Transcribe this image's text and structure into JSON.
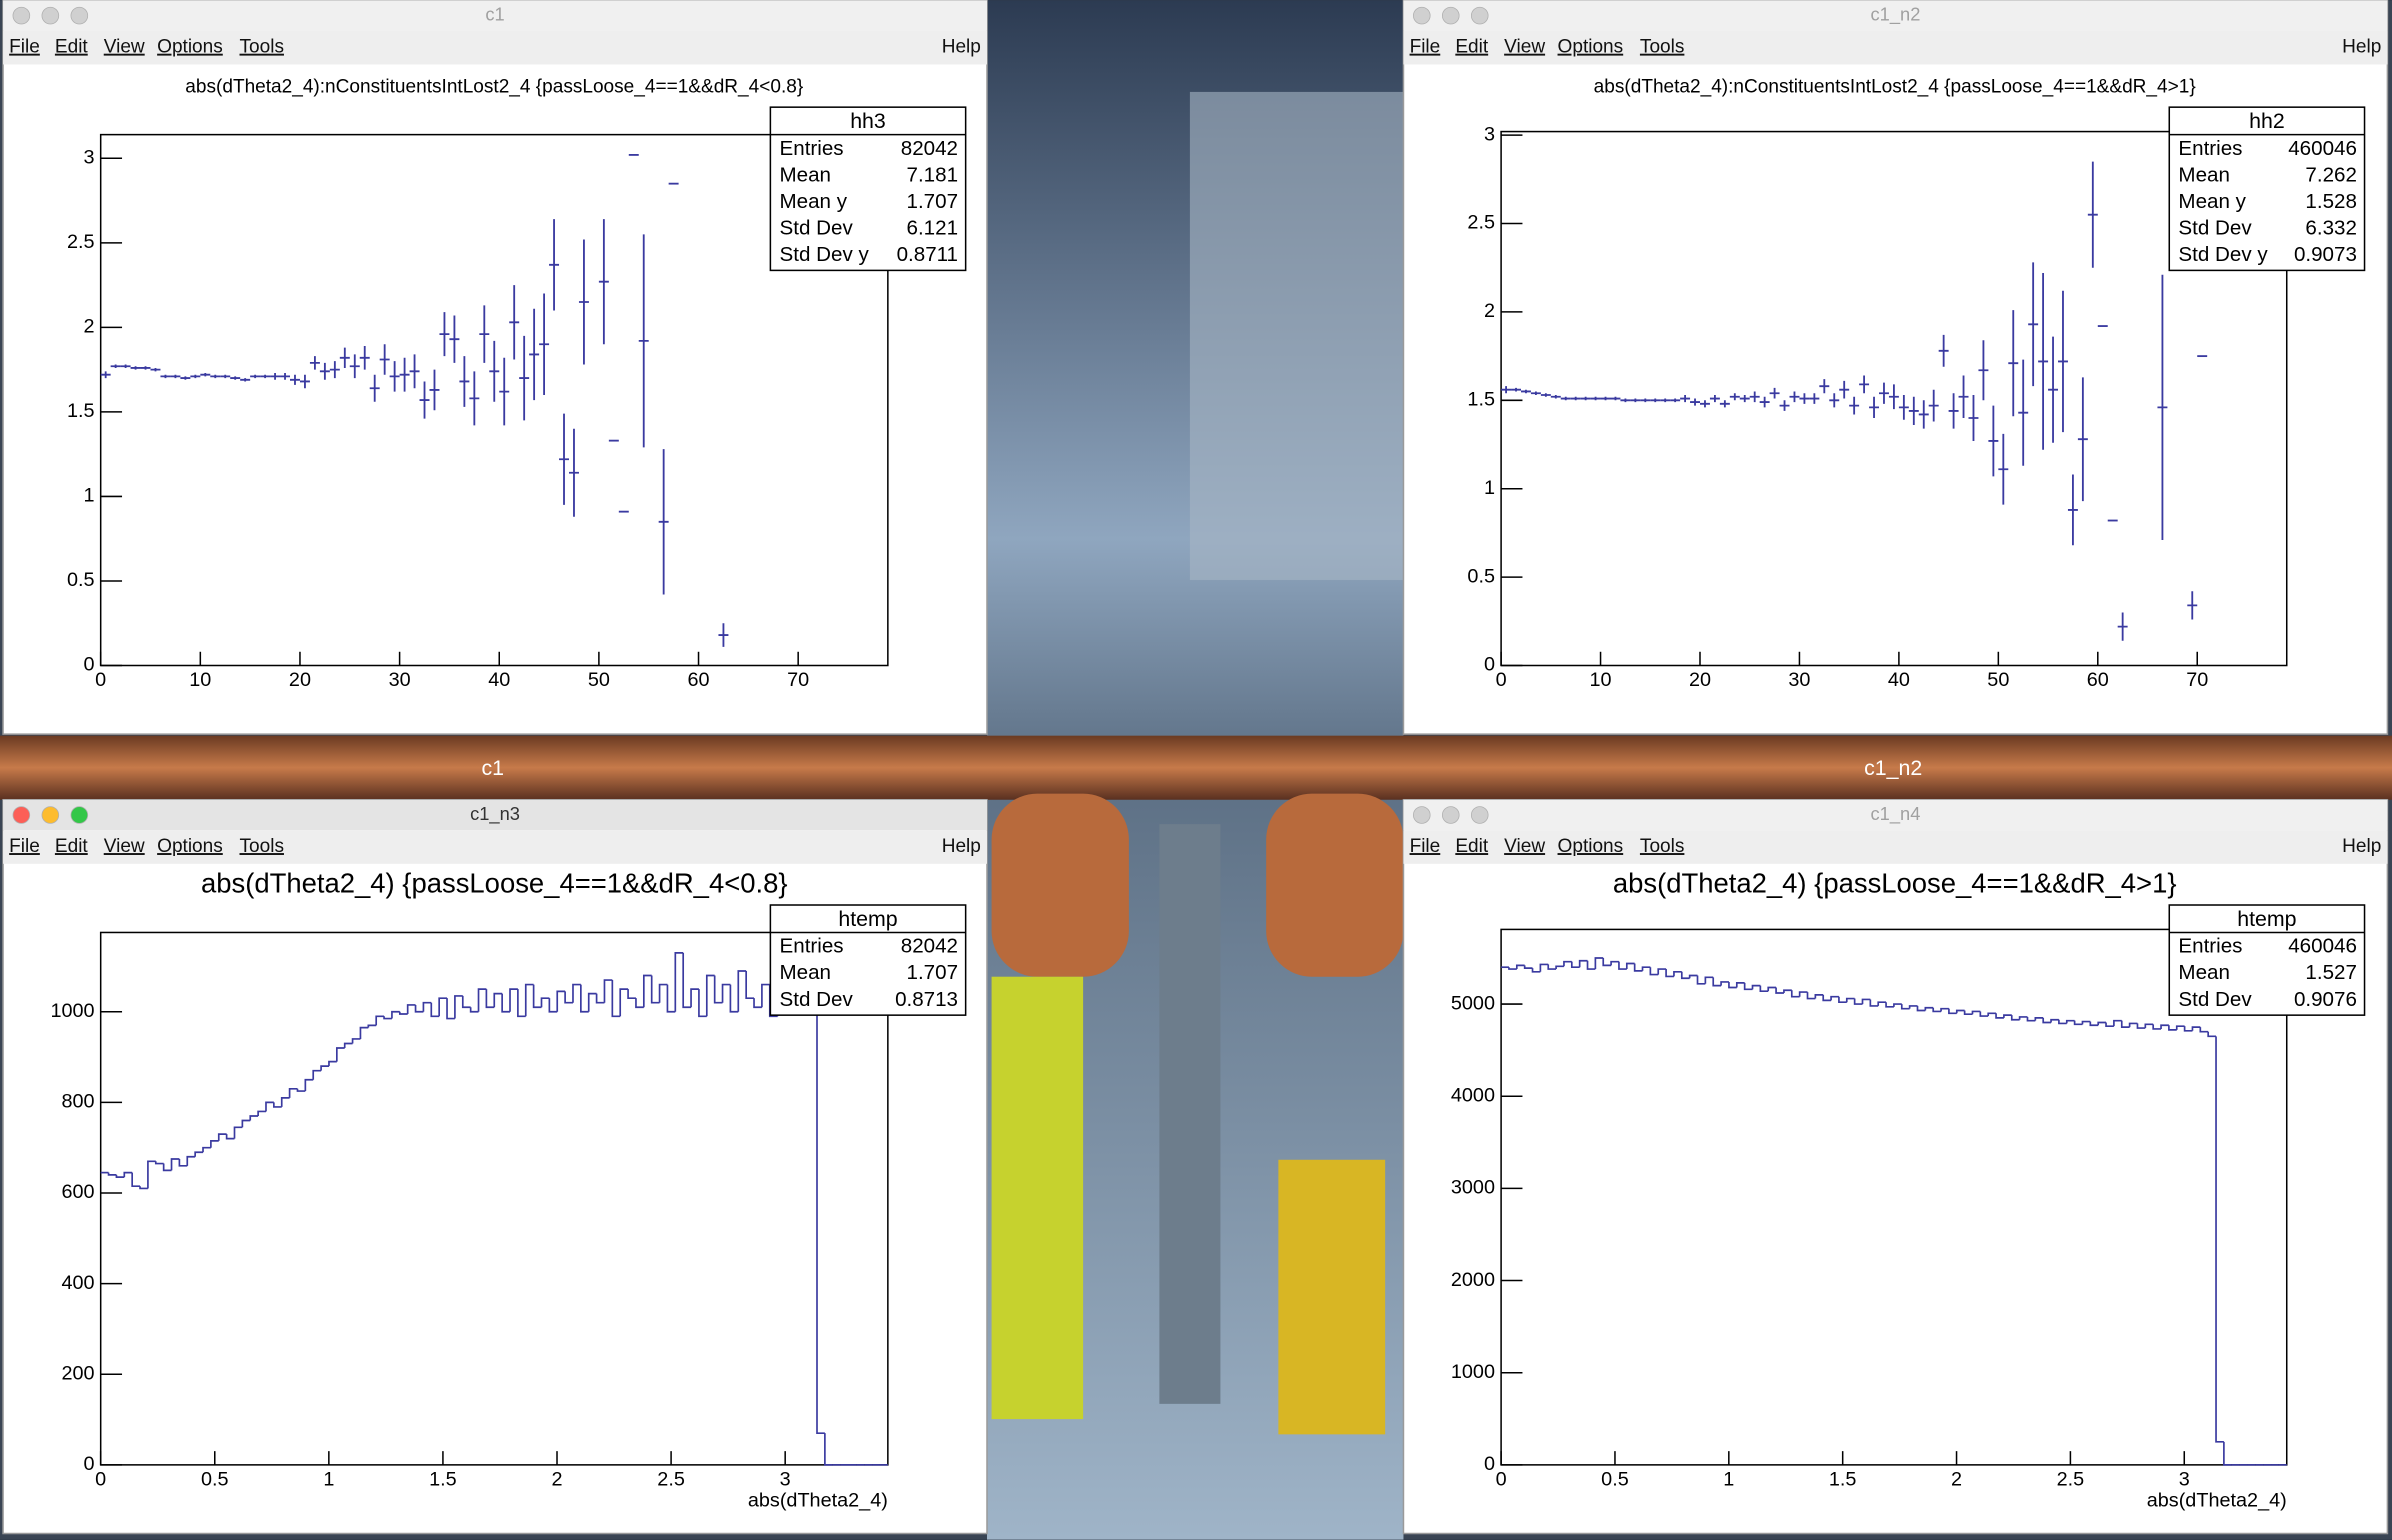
{
  "windows": [
    {
      "title": "c1",
      "menu": [
        "File",
        "Edit",
        "View",
        "Options",
        "Tools"
      ],
      "help": "Help"
    },
    {
      "title": "c1_n2",
      "menu": [
        "File",
        "Edit",
        "View",
        "Options",
        "Tools"
      ],
      "help": "Help"
    },
    {
      "title": "c1_n3",
      "menu": [
        "File",
        "Edit",
        "View",
        "Options",
        "Tools"
      ],
      "help": "Help"
    },
    {
      "title": "c1_n4",
      "menu": [
        "File",
        "Edit",
        "View",
        "Options",
        "Tools"
      ],
      "help": "Help"
    }
  ],
  "desktop_labels": [
    "c1",
    "c1_n2"
  ],
  "chart_data": [
    {
      "type": "errorbar",
      "title": "abs(dTheta2_4):nConstituentsIntLost2_4 {passLoose_4==1&&dR_4<0.8}",
      "color": "#3a3aa0",
      "x": [
        0.5,
        1.5,
        2.5,
        3.5,
        4.5,
        5.5,
        6.5,
        7.5,
        8.5,
        9.5,
        10.5,
        11.5,
        12.5,
        13.5,
        14.5,
        15.5,
        16.5,
        17.5,
        18.5,
        19.5,
        20.5,
        21.5,
        22.5,
        23.5,
        24.5,
        25.5,
        26.5,
        27.5,
        28.5,
        29.5,
        30.5,
        31.5,
        32.5,
        33.5,
        34.5,
        35.5,
        36.5,
        37.5,
        38.5,
        39.5,
        40.5,
        41.5,
        42.5,
        43.5,
        44.5,
        45.5,
        46.5,
        47.5,
        48.5,
        50.5,
        51.5,
        52.5,
        53.5,
        54.5,
        56.5,
        57.5,
        62.5
      ],
      "values": [
        1.72,
        1.77,
        1.77,
        1.76,
        1.76,
        1.75,
        1.71,
        1.71,
        1.7,
        1.71,
        1.72,
        1.71,
        1.71,
        1.7,
        1.69,
        1.71,
        1.71,
        1.71,
        1.71,
        1.69,
        1.68,
        1.79,
        1.74,
        1.75,
        1.82,
        1.77,
        1.82,
        1.64,
        1.81,
        1.71,
        1.72,
        1.74,
        1.57,
        1.63,
        1.96,
        1.93,
        1.68,
        1.58,
        1.96,
        1.74,
        1.62,
        2.03,
        1.7,
        1.84,
        1.9,
        2.37,
        1.22,
        1.14,
        2.15,
        2.27,
        1.33,
        0.91,
        3.02,
        1.92,
        0.85,
        2.85,
        0.18
      ],
      "errors": [
        0.02,
        0.01,
        0.01,
        0.01,
        0.01,
        0.01,
        0.01,
        0.01,
        0.01,
        0.01,
        0.01,
        0.01,
        0.01,
        0.01,
        0.01,
        0.01,
        0.01,
        0.02,
        0.02,
        0.03,
        0.04,
        0.04,
        0.05,
        0.05,
        0.06,
        0.07,
        0.07,
        0.08,
        0.09,
        0.09,
        0.1,
        0.1,
        0.11,
        0.12,
        0.13,
        0.14,
        0.15,
        0.16,
        0.17,
        0.18,
        0.2,
        0.22,
        0.25,
        0.27,
        0.3,
        0.27,
        0.27,
        0.26,
        0.37,
        0.37,
        0,
        0,
        0,
        0.63,
        0.43,
        0,
        0.07
      ],
      "xlim": [
        0,
        79
      ],
      "xticks": [
        0,
        10,
        20,
        30,
        40,
        50,
        60,
        70
      ],
      "ylim": [
        0,
        3.14
      ],
      "yticks": [
        0,
        0.5,
        1,
        1.5,
        2,
        2.5,
        3
      ],
      "stats": {
        "name": "hh3",
        "rows": [
          {
            "label": "Entries",
            "value": 82042
          },
          {
            "label": "Mean",
            "value": 7.181
          },
          {
            "label": "Mean y",
            "value": 1.707
          },
          {
            "label": "Std Dev",
            "value": 6.121
          },
          {
            "label": "Std Dev y",
            "value": 0.8711
          }
        ]
      }
    },
    {
      "type": "errorbar",
      "title": "abs(dTheta2_4):nConstituentsIntLost2_4 {passLoose_4==1&&dR_4>1}",
      "color": "#3a3aa0",
      "x": [
        0.5,
        1.5,
        2.5,
        3.5,
        4.5,
        5.5,
        6.5,
        7.5,
        8.5,
        9.5,
        10.5,
        11.5,
        12.5,
        13.5,
        14.5,
        15.5,
        16.5,
        17.5,
        18.5,
        19.5,
        20.5,
        21.5,
        22.5,
        23.5,
        24.5,
        25.5,
        26.5,
        27.5,
        28.5,
        29.5,
        30.5,
        31.5,
        32.5,
        33.5,
        34.5,
        35.5,
        36.5,
        37.5,
        38.5,
        39.5,
        40.5,
        41.5,
        42.5,
        43.5,
        44.5,
        45.5,
        46.5,
        47.5,
        48.5,
        49.5,
        50.5,
        51.5,
        52.5,
        53.5,
        54.5,
        55.5,
        56.5,
        57.5,
        58.5,
        59.5,
        60.5,
        61.5,
        62.5,
        66.5,
        69.5,
        70.5
      ],
      "values": [
        1.56,
        1.56,
        1.55,
        1.54,
        1.53,
        1.52,
        1.51,
        1.51,
        1.51,
        1.51,
        1.51,
        1.51,
        1.5,
        1.5,
        1.5,
        1.5,
        1.5,
        1.5,
        1.51,
        1.49,
        1.48,
        1.51,
        1.48,
        1.52,
        1.51,
        1.52,
        1.49,
        1.54,
        1.47,
        1.52,
        1.51,
        1.51,
        1.58,
        1.5,
        1.56,
        1.47,
        1.59,
        1.46,
        1.54,
        1.52,
        1.46,
        1.44,
        1.42,
        1.47,
        1.78,
        1.44,
        1.52,
        1.4,
        1.67,
        1.27,
        1.11,
        1.71,
        1.43,
        1.93,
        1.72,
        1.56,
        1.72,
        0.88,
        1.28,
        2.55,
        1.92,
        0.82,
        0.22,
        1.46,
        0.34,
        1.75
      ],
      "errors": [
        0.02,
        0.01,
        0.01,
        0.01,
        0.01,
        0.01,
        0.01,
        0.01,
        0.01,
        0.01,
        0.01,
        0.01,
        0.01,
        0.01,
        0.01,
        0.01,
        0.01,
        0.01,
        0.02,
        0.02,
        0.02,
        0.02,
        0.02,
        0.02,
        0.02,
        0.03,
        0.03,
        0.03,
        0.03,
        0.03,
        0.03,
        0.03,
        0.04,
        0.04,
        0.05,
        0.05,
        0.05,
        0.06,
        0.06,
        0.07,
        0.07,
        0.08,
        0.08,
        0.09,
        0.09,
        0.1,
        0.12,
        0.13,
        0.17,
        0.2,
        0.2,
        0.3,
        0.3,
        0.35,
        0.5,
        0.3,
        0.4,
        0.2,
        0.35,
        0.3,
        0,
        0,
        0.08,
        0.75,
        0.08,
        0
      ],
      "xlim": [
        0,
        79
      ],
      "xticks": [
        0,
        10,
        20,
        30,
        40,
        50,
        60,
        70
      ],
      "ylim": [
        0,
        3.02
      ],
      "yticks": [
        0,
        0.5,
        1,
        1.5,
        2,
        2.5,
        3
      ],
      "stats": {
        "name": "hh2",
        "rows": [
          {
            "label": "Entries",
            "value": 460046
          },
          {
            "label": "Mean",
            "value": 7.262
          },
          {
            "label": "Mean y",
            "value": 1.528
          },
          {
            "label": "Std Dev",
            "value": 6.332
          },
          {
            "label": "Std Dev y",
            "value": 0.9073
          }
        ]
      }
    },
    {
      "type": "histogram",
      "title": "abs(dTheta2_4) {passLoose_4==1&&dR_4<0.8}",
      "xlabel": "abs(dTheta2_4)",
      "color": "#3a3aa0",
      "bins": [
        0,
        0.0345,
        0.069,
        0.1035,
        0.138,
        0.1725,
        0.207,
        0.2415,
        0.276,
        0.3105,
        0.345,
        0.3795,
        0.414,
        0.4485,
        0.483,
        0.5175,
        0.552,
        0.5865,
        0.621,
        0.6555,
        0.69,
        0.7245,
        0.759,
        0.7935,
        0.828,
        0.8625,
        0.897,
        0.9315,
        0.966,
        1.0005,
        1.035,
        1.0695,
        1.104,
        1.1385,
        1.173,
        1.2075,
        1.242,
        1.2765,
        1.311,
        1.3455,
        1.38,
        1.4145,
        1.449,
        1.4835,
        1.518,
        1.5525,
        1.587,
        1.6215,
        1.656,
        1.6905,
        1.725,
        1.7595,
        1.794,
        1.8285,
        1.863,
        1.8975,
        1.932,
        1.9665,
        2.001,
        2.0355,
        2.07,
        2.1045,
        2.139,
        2.1735,
        2.208,
        2.2425,
        2.277,
        2.3115,
        2.346,
        2.3805,
        2.415,
        2.4495,
        2.484,
        2.5185,
        2.553,
        2.5875,
        2.622,
        2.6565,
        2.691,
        2.7255,
        2.76,
        2.7945,
        2.829,
        2.8635,
        2.898,
        2.9325,
        2.967,
        3.0015,
        3.036,
        3.0705,
        3.105,
        3.1395,
        3.174,
        3.2085,
        3.243,
        3.2775,
        3.312,
        3.3465,
        3.381,
        3.4155,
        3.45
      ],
      "values": [
        645,
        640,
        635,
        645,
        615,
        610,
        670,
        665,
        650,
        675,
        660,
        680,
        690,
        700,
        715,
        730,
        720,
        745,
        760,
        770,
        780,
        800,
        790,
        810,
        830,
        825,
        850,
        870,
        880,
        890,
        920,
        930,
        940,
        965,
        970,
        990,
        985,
        1000,
        995,
        1015,
        1000,
        1020,
        990,
        1030,
        985,
        1035,
        1010,
        1000,
        1050,
        1010,
        1040,
        1000,
        1050,
        990,
        1060,
        1010,
        1030,
        1000,
        1045,
        1020,
        1060,
        1000,
        1040,
        1020,
        1070,
        990,
        1050,
        1030,
        1010,
        1080,
        1020,
        1060,
        1000,
        1130,
        1010,
        1050,
        990,
        1080,
        1020,
        1060,
        1000,
        1090,
        1030,
        1010,
        1060,
        990,
        1050,
        1020,
        1040,
        1000,
        1030,
        70,
        0,
        0,
        0,
        0,
        0,
        0,
        0,
        0
      ],
      "xlim": [
        0,
        3.45
      ],
      "xticks": [
        0,
        0.5,
        1,
        1.5,
        2,
        2.5,
        3
      ],
      "ylim": [
        0,
        1175
      ],
      "yticks": [
        0,
        200,
        400,
        600,
        800,
        1000
      ],
      "stats": {
        "name": "htemp",
        "rows": [
          {
            "label": "Entries",
            "value": 82042
          },
          {
            "label": "Mean",
            "value": 1.707
          },
          {
            "label": "Std Dev",
            "value": 0.8713
          }
        ]
      }
    },
    {
      "type": "histogram",
      "title": "abs(dTheta2_4) {passLoose_4==1&&dR_4>1}",
      "xlabel": "abs(dTheta2_4)",
      "color": "#3a3aa0",
      "bins": [
        0,
        0.0345,
        0.069,
        0.1035,
        0.138,
        0.1725,
        0.207,
        0.2415,
        0.276,
        0.3105,
        0.345,
        0.3795,
        0.414,
        0.4485,
        0.483,
        0.5175,
        0.552,
        0.5865,
        0.621,
        0.6555,
        0.69,
        0.7245,
        0.759,
        0.7935,
        0.828,
        0.8625,
        0.897,
        0.9315,
        0.966,
        1.0005,
        1.035,
        1.0695,
        1.104,
        1.1385,
        1.173,
        1.2075,
        1.242,
        1.2765,
        1.311,
        1.3455,
        1.38,
        1.4145,
        1.449,
        1.4835,
        1.518,
        1.5525,
        1.587,
        1.6215,
        1.656,
        1.6905,
        1.725,
        1.7595,
        1.794,
        1.8285,
        1.863,
        1.8975,
        1.932,
        1.9665,
        2.001,
        2.0355,
        2.07,
        2.1045,
        2.139,
        2.1735,
        2.208,
        2.2425,
        2.277,
        2.3115,
        2.346,
        2.3805,
        2.415,
        2.4495,
        2.484,
        2.5185,
        2.553,
        2.5875,
        2.622,
        2.6565,
        2.691,
        2.7255,
        2.76,
        2.7945,
        2.829,
        2.8635,
        2.898,
        2.9325,
        2.967,
        3.0015,
        3.036,
        3.0705,
        3.105,
        3.1395,
        3.174,
        3.2085,
        3.243,
        3.2775,
        3.312,
        3.3465,
        3.381,
        3.4155,
        3.45
      ],
      "values": [
        5400,
        5380,
        5420,
        5390,
        5350,
        5430,
        5380,
        5410,
        5460,
        5400,
        5470,
        5380,
        5500,
        5420,
        5460,
        5380,
        5440,
        5360,
        5400,
        5320,
        5380,
        5300,
        5350,
        5280,
        5310,
        5220,
        5290,
        5200,
        5240,
        5180,
        5230,
        5160,
        5200,
        5140,
        5180,
        5120,
        5150,
        5080,
        5130,
        5060,
        5100,
        5040,
        5080,
        5020,
        5060,
        5000,
        5050,
        4980,
        5020,
        4970,
        5000,
        4950,
        4980,
        4930,
        4960,
        4920,
        4950,
        4900,
        4930,
        4890,
        4920,
        4870,
        4900,
        4850,
        4880,
        4830,
        4860,
        4820,
        4850,
        4800,
        4830,
        4790,
        4820,
        4780,
        4810,
        4770,
        4800,
        4760,
        4820,
        4750,
        4790,
        4740,
        4780,
        4730,
        4770,
        4720,
        4760,
        4710,
        4750,
        4700,
        4650,
        250,
        0,
        0,
        0,
        0,
        0,
        0,
        0,
        0
      ],
      "xlim": [
        0,
        3.45
      ],
      "xticks": [
        0,
        0.5,
        1,
        1.5,
        2,
        2.5,
        3
      ],
      "ylim": [
        0,
        5810
      ],
      "yticks": [
        0,
        1000,
        2000,
        3000,
        4000,
        5000
      ],
      "stats": {
        "name": "htemp",
        "rows": [
          {
            "label": "Entries",
            "value": 460046
          },
          {
            "label": "Mean",
            "value": 1.527
          },
          {
            "label": "Std Dev",
            "value": 0.9076
          }
        ]
      }
    }
  ]
}
